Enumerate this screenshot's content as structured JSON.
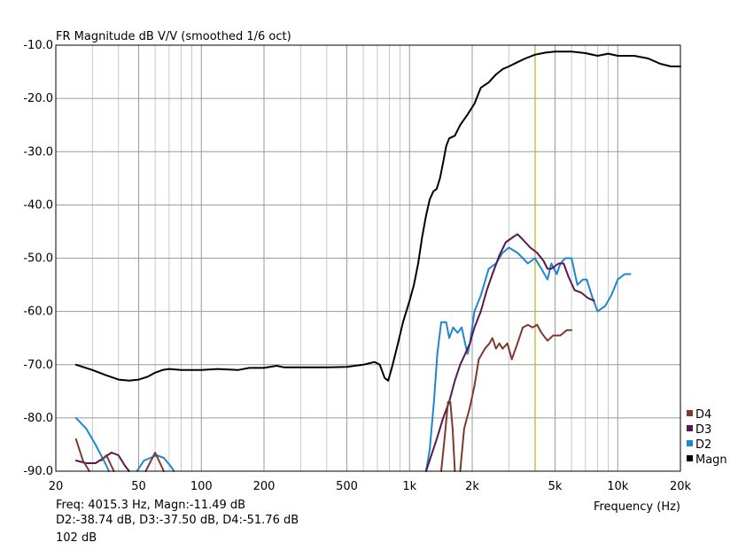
{
  "chart_data": {
    "type": "line",
    "title": "FR Magnitude dB V/V (smoothed 1/6 oct)",
    "xlabel": "Frequency (Hz)",
    "ylabel": "",
    "x_scale": "log",
    "xlim": [
      20,
      20000
    ],
    "ylim": [
      -90,
      -10
    ],
    "x_ticks": [
      20,
      50,
      100,
      200,
      500,
      1000,
      2000,
      5000,
      10000,
      20000
    ],
    "x_tick_labels": [
      "20",
      "50",
      "100",
      "200",
      "500",
      "1k",
      "2k",
      "5k",
      "10k",
      "20k"
    ],
    "y_ticks": [
      -10,
      -20,
      -30,
      -40,
      -50,
      -60,
      -70,
      -80,
      -90
    ],
    "y_tick_labels": [
      "-10.0",
      "-20.0",
      "-30.0",
      "-40.0",
      "-50.0",
      "-60.0",
      "-70.0",
      "-80.0",
      "-90.0"
    ],
    "grid": true,
    "legend_position": "bottom-right",
    "cursor": {
      "x": 4015.3,
      "color": "#c8b400"
    },
    "series": [
      {
        "name": "D4",
        "color": "#7a3b2e",
        "points": [
          [
            25,
            -84
          ],
          [
            27,
            -88
          ],
          [
            29,
            -90.5
          ],
          [
            33,
            -88
          ],
          [
            35,
            -87
          ],
          [
            38,
            -90.5
          ],
          [
            54,
            -90.5
          ],
          [
            60,
            -86.5
          ],
          [
            66,
            -90.5
          ],
          [
            1420,
            -90.5
          ],
          [
            1480,
            -83
          ],
          [
            1530,
            -77
          ],
          [
            1570,
            -77
          ],
          [
            1610,
            -82
          ],
          [
            1650,
            -90.5
          ],
          [
            1750,
            -90.5
          ],
          [
            1830,
            -82
          ],
          [
            1950,
            -78
          ],
          [
            2050,
            -74
          ],
          [
            2150,
            -69
          ],
          [
            2300,
            -67
          ],
          [
            2420,
            -66
          ],
          [
            2500,
            -65
          ],
          [
            2600,
            -67
          ],
          [
            2700,
            -66
          ],
          [
            2800,
            -67
          ],
          [
            2950,
            -66
          ],
          [
            3100,
            -69
          ],
          [
            3300,
            -66
          ],
          [
            3500,
            -63
          ],
          [
            3700,
            -62.5
          ],
          [
            3900,
            -63
          ],
          [
            4100,
            -62.5
          ],
          [
            4300,
            -64
          ],
          [
            4600,
            -65.5
          ],
          [
            4900,
            -64.5
          ],
          [
            5300,
            -64.5
          ],
          [
            5700,
            -63.5
          ],
          [
            6000,
            -63.5
          ]
        ]
      },
      {
        "name": "D3",
        "color": "#5a1750",
        "points": [
          [
            25,
            -88
          ],
          [
            28,
            -88.5
          ],
          [
            31,
            -88.5
          ],
          [
            34,
            -87.5
          ],
          [
            37,
            -86.5
          ],
          [
            40,
            -87
          ],
          [
            43,
            -89
          ],
          [
            45,
            -90.5
          ],
          [
            1200,
            -90.5
          ],
          [
            1350,
            -84
          ],
          [
            1450,
            -80
          ],
          [
            1550,
            -77
          ],
          [
            1650,
            -73
          ],
          [
            1750,
            -70
          ],
          [
            1850,
            -68
          ],
          [
            1950,
            -66
          ],
          [
            2050,
            -63
          ],
          [
            2200,
            -60
          ],
          [
            2350,
            -56
          ],
          [
            2500,
            -53
          ],
          [
            2700,
            -49.5
          ],
          [
            2900,
            -47
          ],
          [
            3150,
            -46
          ],
          [
            3300,
            -45.5
          ],
          [
            3500,
            -46.5
          ],
          [
            3800,
            -48
          ],
          [
            4100,
            -49
          ],
          [
            4400,
            -50.5
          ],
          [
            4600,
            -52
          ],
          [
            4800,
            -52
          ],
          [
            5200,
            -51
          ],
          [
            5500,
            -51
          ],
          [
            5800,
            -53.5
          ],
          [
            6200,
            -56
          ],
          [
            6700,
            -56.5
          ],
          [
            7200,
            -57.5
          ],
          [
            7700,
            -58
          ]
        ]
      },
      {
        "name": "D2",
        "color": "#1f86d0",
        "points": [
          [
            25,
            -80
          ],
          [
            28,
            -82
          ],
          [
            31,
            -85
          ],
          [
            34,
            -88
          ],
          [
            36,
            -90.5
          ],
          [
            49,
            -90.5
          ],
          [
            53,
            -88
          ],
          [
            57,
            -87.5
          ],
          [
            61,
            -87
          ],
          [
            66,
            -87.5
          ],
          [
            71,
            -89
          ],
          [
            74,
            -90.5
          ],
          [
            1200,
            -90.5
          ],
          [
            1250,
            -86
          ],
          [
            1310,
            -77
          ],
          [
            1360,
            -68
          ],
          [
            1420,
            -62
          ],
          [
            1500,
            -62
          ],
          [
            1550,
            -65
          ],
          [
            1620,
            -63
          ],
          [
            1700,
            -64
          ],
          [
            1780,
            -63
          ],
          [
            1850,
            -66
          ],
          [
            1900,
            -68
          ],
          [
            1950,
            -66
          ],
          [
            2050,
            -60
          ],
          [
            2200,
            -57
          ],
          [
            2400,
            -52
          ],
          [
            2600,
            -51
          ],
          [
            2800,
            -49
          ],
          [
            3000,
            -48
          ],
          [
            3300,
            -49
          ],
          [
            3500,
            -50
          ],
          [
            3700,
            -51
          ],
          [
            4000,
            -50
          ],
          [
            4300,
            -52
          ],
          [
            4600,
            -54
          ],
          [
            4800,
            -51
          ],
          [
            5100,
            -53
          ],
          [
            5300,
            -51
          ],
          [
            5600,
            -50
          ],
          [
            6000,
            -50
          ],
          [
            6400,
            -55
          ],
          [
            6800,
            -54
          ],
          [
            7100,
            -54
          ],
          [
            7500,
            -57
          ],
          [
            8000,
            -60
          ],
          [
            8700,
            -59
          ],
          [
            9300,
            -57
          ],
          [
            10000,
            -54
          ],
          [
            10800,
            -53
          ],
          [
            11500,
            -53
          ]
        ]
      },
      {
        "name": "Magn",
        "color": "#000000",
        "points": [
          [
            25,
            -70
          ],
          [
            30,
            -71
          ],
          [
            35,
            -72
          ],
          [
            40,
            -72.8
          ],
          [
            45,
            -73
          ],
          [
            50,
            -72.8
          ],
          [
            55,
            -72.3
          ],
          [
            60,
            -71.5
          ],
          [
            65,
            -71
          ],
          [
            70,
            -70.8
          ],
          [
            80,
            -71
          ],
          [
            100,
            -71
          ],
          [
            120,
            -70.8
          ],
          [
            150,
            -71
          ],
          [
            170,
            -70.6
          ],
          [
            200,
            -70.6
          ],
          [
            230,
            -70.2
          ],
          [
            250,
            -70.5
          ],
          [
            300,
            -70.5
          ],
          [
            400,
            -70.5
          ],
          [
            500,
            -70.4
          ],
          [
            600,
            -70
          ],
          [
            680,
            -69.5
          ],
          [
            720,
            -70
          ],
          [
            760,
            -72.5
          ],
          [
            790,
            -73
          ],
          [
            830,
            -70
          ],
          [
            880,
            -66
          ],
          [
            930,
            -62
          ],
          [
            1000,
            -58
          ],
          [
            1050,
            -55
          ],
          [
            1100,
            -51
          ],
          [
            1150,
            -46
          ],
          [
            1200,
            -42
          ],
          [
            1250,
            -39
          ],
          [
            1300,
            -37.5
          ],
          [
            1350,
            -37
          ],
          [
            1400,
            -35
          ],
          [
            1450,
            -32
          ],
          [
            1500,
            -29
          ],
          [
            1550,
            -27.5
          ],
          [
            1650,
            -27
          ],
          [
            1750,
            -25
          ],
          [
            1900,
            -23
          ],
          [
            2050,
            -21
          ],
          [
            2200,
            -18
          ],
          [
            2400,
            -17
          ],
          [
            2600,
            -15.5
          ],
          [
            2800,
            -14.5
          ],
          [
            3000,
            -14
          ],
          [
            3300,
            -13.2
          ],
          [
            3600,
            -12.5
          ],
          [
            4000,
            -11.8
          ],
          [
            4500,
            -11.4
          ],
          [
            5000,
            -11.2
          ],
          [
            6000,
            -11.2
          ],
          [
            7000,
            -11.5
          ],
          [
            8000,
            -12
          ],
          [
            9000,
            -11.6
          ],
          [
            10000,
            -12
          ],
          [
            12000,
            -12
          ],
          [
            14000,
            -12.5
          ],
          [
            16000,
            -13.5
          ],
          [
            18000,
            -14
          ],
          [
            20000,
            -14
          ]
        ]
      }
    ],
    "legend": [
      "D4",
      "D3",
      "D2",
      "Magn"
    ]
  },
  "readout": {
    "line1": "Freq: 4015.3 Hz, Magn:-11.49 dB",
    "line2": "D2:-38.74 dB, D3:-37.50 dB, D4:-51.76 dB",
    "line3": "102 dB"
  }
}
